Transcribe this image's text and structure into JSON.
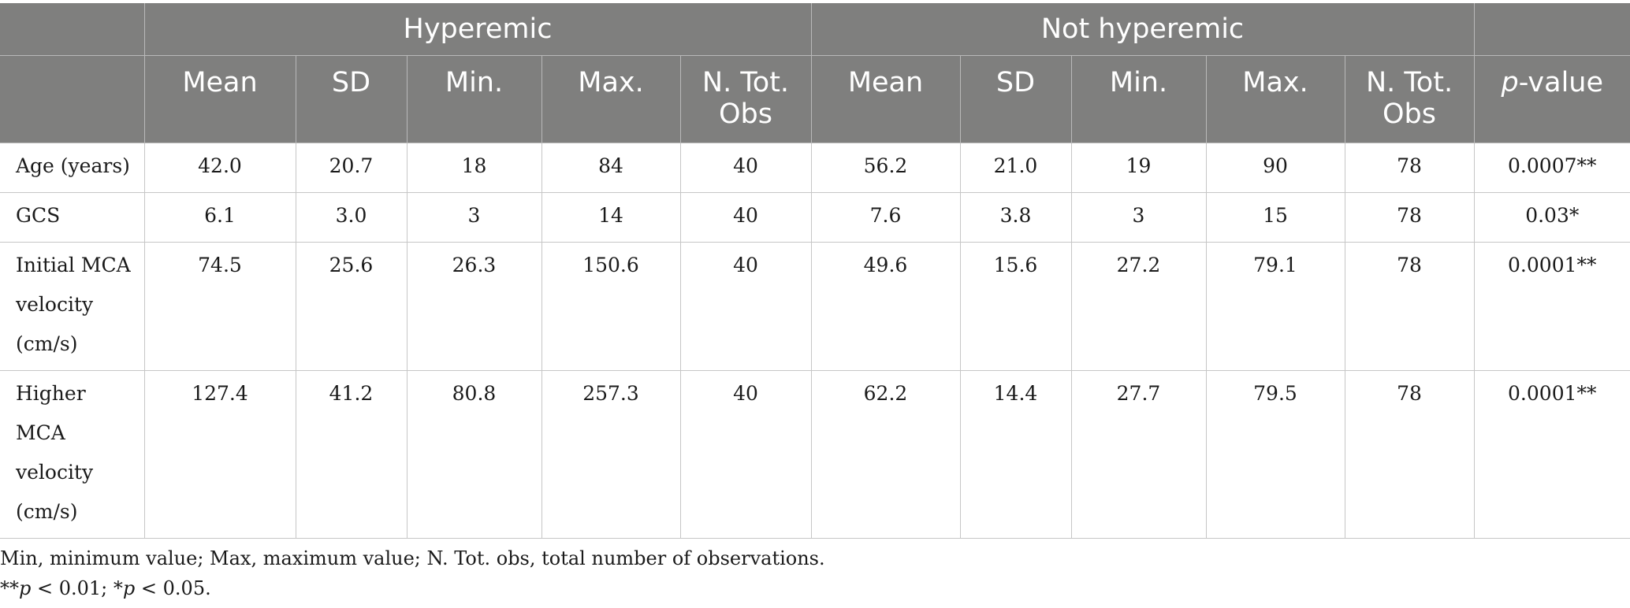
{
  "header": {
    "group_hyperemic": "Hyperemic",
    "group_not_hyperemic": "Not hyperemic",
    "columns": [
      "Mean",
      "SD",
      "Min.",
      "Max.",
      "N. Tot. Obs",
      "Mean",
      "SD",
      "Min.",
      "Max.",
      "N. Tot. Obs"
    ],
    "p_value_p": "p",
    "p_value_rest": "-value"
  },
  "rows": [
    {
      "label": "Age (years)",
      "cells": [
        "42.0",
        "20.7",
        "18",
        "84",
        "40",
        "56.2",
        "21.0",
        "19",
        "90",
        "78",
        "0.0007**"
      ]
    },
    {
      "label": "GCS",
      "cells": [
        "6.1",
        "3.0",
        "3",
        "14",
        "40",
        "7.6",
        "3.8",
        "3",
        "15",
        "78",
        "0.03*"
      ]
    },
    {
      "label": "Initial MCA velocity (cm/s)",
      "cells": [
        "74.5",
        "25.6",
        "26.3",
        "150.6",
        "40",
        "49.6",
        "15.6",
        "27.2",
        "79.1",
        "78",
        "0.0001**"
      ]
    },
    {
      "label": "Higher MCA velocity (cm/s)",
      "cells": [
        "127.4",
        "41.2",
        "80.8",
        "257.3",
        "40",
        "62.2",
        "14.4",
        "27.7",
        "79.5",
        "78",
        "0.0001**"
      ]
    }
  ],
  "footnotes": {
    "abbreviations": "Min, minimum value; Max, maximum value; N. Tot. obs, total number of observations.",
    "sig_marker_1": "**",
    "sig_p_1": "p",
    "sig_text_1": " < 0.01; ",
    "sig_marker_2": "*",
    "sig_p_2": "p",
    "sig_text_2": " < 0.05."
  }
}
